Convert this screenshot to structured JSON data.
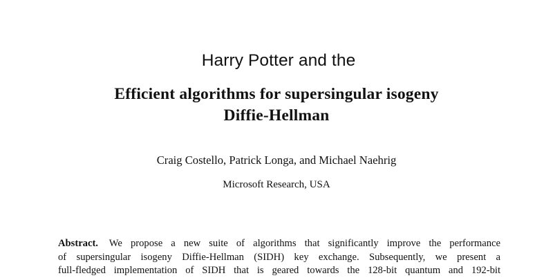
{
  "overlay_prefix": "Harry Potter and the",
  "paper": {
    "title_line1": "Efficient algorithms for supersingular isogeny",
    "title_line2": "Diffie-Hellman",
    "authors": "Craig Costello, Patrick Longa, and Michael Naehrig",
    "affiliation": "Microsoft Research, USA",
    "abstract": {
      "label": "Abstract.",
      "lines": [
        "We propose a new suite of algorithms that significantly improve the performance",
        "of supersingular isogeny Diffie-Hellman (SIDH) key exchange. Subsequently, we present a",
        "full-fledged implementation of SIDH that is geared towards the 128-bit quantum and 192-bit"
      ]
    }
  }
}
